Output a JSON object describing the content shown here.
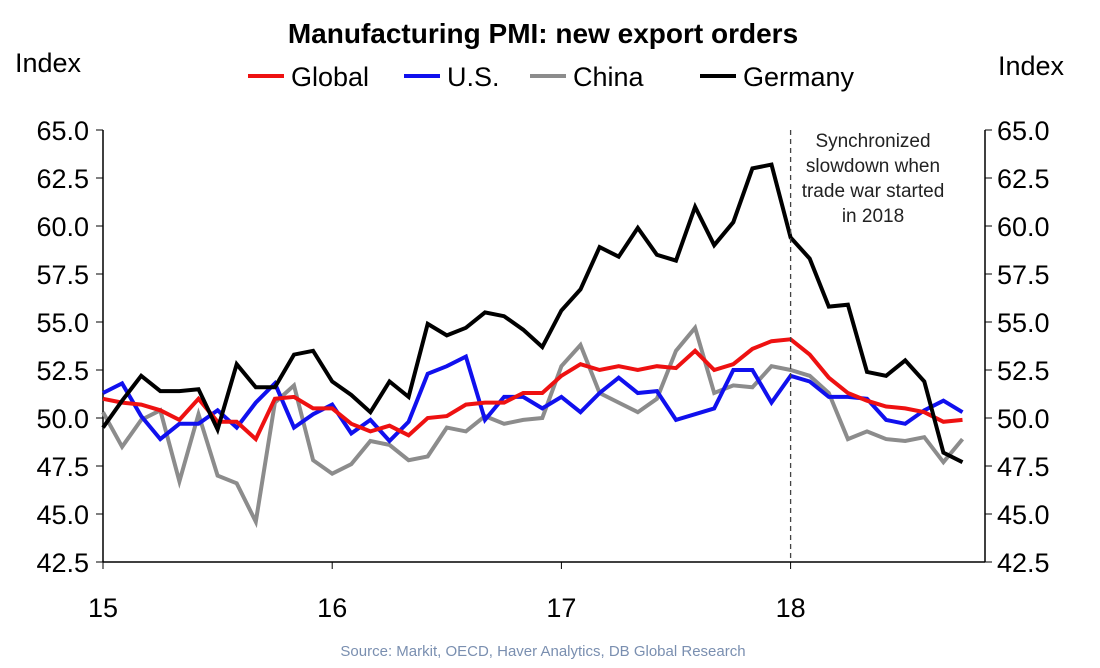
{
  "chart_data": {
    "type": "line",
    "title": "Manufacturing PMI: new export orders",
    "ylabel_left": "Index",
    "ylabel_right": "Index",
    "ylim": [
      42.5,
      65.0
    ],
    "yticks": [
      "42.5",
      "45.0",
      "47.5",
      "50.0",
      "52.5",
      "55.0",
      "57.5",
      "60.0",
      "62.5",
      "65.0"
    ],
    "xticks": [
      "15",
      "16",
      "17",
      "18"
    ],
    "x_start": "2015-01",
    "frequency": "monthly",
    "annotation": [
      "Synchronized",
      "slowdown when",
      "trade war started",
      "in 2018"
    ],
    "annotation_line_at": "18",
    "source": "Source: Markit, OECD, Haver Analytics, DB Global Research",
    "series": [
      {
        "name": "Global",
        "color": "#ee1111",
        "values": [
          51.0,
          50.8,
          50.7,
          50.4,
          49.9,
          51.0,
          49.8,
          49.8,
          48.9,
          51.0,
          51.1,
          50.5,
          50.5,
          49.7,
          49.3,
          49.6,
          49.1,
          50.0,
          50.1,
          50.7,
          50.8,
          50.8,
          51.3,
          51.3,
          52.2,
          52.8,
          52.5,
          52.7,
          52.5,
          52.7,
          52.6,
          53.5,
          52.5,
          52.8,
          53.6,
          54.0,
          54.1,
          53.3,
          52.1,
          51.3,
          50.9,
          50.6,
          50.5,
          50.3,
          49.8,
          49.9
        ]
      },
      {
        "name": "U.S.",
        "color": "#1010ee",
        "values": [
          51.3,
          51.8,
          50.1,
          48.9,
          49.7,
          49.7,
          50.4,
          49.5,
          50.8,
          51.8,
          49.5,
          50.2,
          50.7,
          49.2,
          49.9,
          48.8,
          49.8,
          52.3,
          52.7,
          53.2,
          49.9,
          51.1,
          51.1,
          50.5,
          51.1,
          50.3,
          51.3,
          52.1,
          51.3,
          51.4,
          49.9,
          50.2,
          50.5,
          52.5,
          52.5,
          50.8,
          52.2,
          51.9,
          51.1,
          51.1,
          51.0,
          49.9,
          49.7,
          50.4,
          50.9,
          50.3
        ]
      },
      {
        "name": "China",
        "color": "#8c8c8c",
        "values": [
          50.3,
          48.5,
          49.9,
          50.4,
          46.7,
          50.2,
          47.0,
          46.6,
          44.6,
          50.8,
          51.7,
          47.8,
          47.1,
          47.6,
          48.8,
          48.6,
          47.8,
          48.0,
          49.5,
          49.3,
          50.1,
          49.7,
          49.9,
          50.0,
          52.7,
          53.8,
          51.3,
          50.8,
          50.3,
          51.0,
          53.5,
          54.7,
          51.3,
          51.7,
          51.6,
          52.7,
          52.5,
          52.2,
          51.3,
          48.9,
          49.3,
          48.9,
          48.8,
          49.0,
          47.7,
          48.9
        ]
      },
      {
        "name": "Germany",
        "color": "#000000",
        "values": [
          49.5,
          50.9,
          52.2,
          51.4,
          51.4,
          51.5,
          49.4,
          52.8,
          51.6,
          51.6,
          53.3,
          53.5,
          51.9,
          51.2,
          50.3,
          51.9,
          51.1,
          54.9,
          54.3,
          54.7,
          55.5,
          55.3,
          54.6,
          53.7,
          55.6,
          56.7,
          58.9,
          58.4,
          59.9,
          58.5,
          58.2,
          61.0,
          59.0,
          60.2,
          63.0,
          63.2,
          59.4,
          58.3,
          55.8,
          55.9,
          52.4,
          52.2,
          53.0,
          51.9,
          48.2,
          47.7
        ]
      }
    ]
  }
}
